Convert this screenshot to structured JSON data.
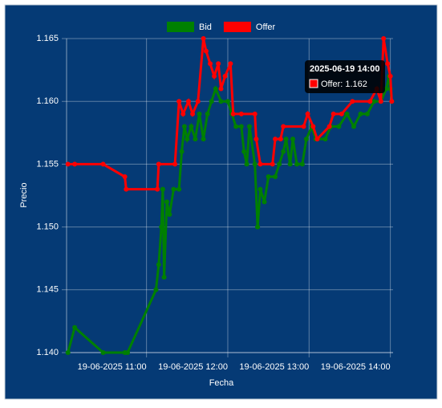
{
  "chart_data": {
    "type": "line",
    "x_label": "Fecha",
    "y_label": "Precio",
    "xlim": [
      "2025-06-19 10:01",
      "2025-06-19 14:02"
    ],
    "xticks": [
      {
        "value": "2025-06-19 11:00",
        "label": "19-06-2025 11:00"
      },
      {
        "value": "2025-06-19 12:00",
        "label": "19-06-2025 12:00"
      },
      {
        "value": "2025-06-19 13:00",
        "label": "19-06-2025 13:00"
      },
      {
        "value": "2025-06-19 14:00",
        "label": "19-06-2025 14:00"
      }
    ],
    "ylim": [
      1.14,
      1.165
    ],
    "yticks": [
      {
        "value": 1.14,
        "label": "1.140"
      },
      {
        "value": 1.145,
        "label": "1.145"
      },
      {
        "value": 1.15,
        "label": "1.150"
      },
      {
        "value": 1.155,
        "label": "1.155"
      },
      {
        "value": 1.16,
        "label": "1.160"
      },
      {
        "value": 1.165,
        "label": "1.165"
      }
    ],
    "grid": true,
    "legend": "top",
    "series": [
      {
        "name": "Bid",
        "color": "#008000",
        "x": [
          "2025-06-19 10:02",
          "2025-06-19 10:07",
          "2025-06-19 10:28",
          "2025-06-19 10:44",
          "2025-06-19 10:46",
          "2025-06-19 11:07",
          "2025-06-19 11:09",
          "2025-06-19 11:11",
          "2025-06-19 11:12",
          "2025-06-19 11:13",
          "2025-06-19 11:15",
          "2025-06-19 11:17",
          "2025-06-19 11:20",
          "2025-06-19 11:24",
          "2025-06-19 11:26",
          "2025-06-19 11:28",
          "2025-06-19 11:30",
          "2025-06-19 11:33",
          "2025-06-19 11:36",
          "2025-06-19 11:39",
          "2025-06-19 11:42",
          "2025-06-19 11:45",
          "2025-06-19 11:48",
          "2025-06-19 11:51",
          "2025-06-19 11:55",
          "2025-06-19 12:00",
          "2025-06-19 12:03",
          "2025-06-19 12:06",
          "2025-06-19 12:10",
          "2025-06-19 12:12",
          "2025-06-19 12:14",
          "2025-06-19 12:16",
          "2025-06-19 12:20",
          "2025-06-19 12:22",
          "2025-06-19 12:24",
          "2025-06-19 12:27",
          "2025-06-19 12:30",
          "2025-06-19 12:35",
          "2025-06-19 12:38",
          "2025-06-19 12:41",
          "2025-06-19 12:43",
          "2025-06-19 12:46",
          "2025-06-19 12:48",
          "2025-06-19 12:51",
          "2025-06-19 12:55",
          "2025-06-19 12:58",
          "2025-06-19 13:02",
          "2025-06-19 13:05",
          "2025-06-19 13:12",
          "2025-06-19 13:16",
          "2025-06-19 13:22",
          "2025-06-19 13:28",
          "2025-06-19 13:33",
          "2025-06-19 13:38",
          "2025-06-19 13:43",
          "2025-06-19 13:48",
          "2025-06-19 13:53",
          "2025-06-19 13:57",
          "2025-06-19 13:59",
          "2025-06-19 14:00",
          "2025-06-19 14:01"
        ],
        "values": [
          1.14,
          1.142,
          1.14,
          1.14,
          1.14,
          1.145,
          1.147,
          1.15,
          1.153,
          1.146,
          1.152,
          1.151,
          1.153,
          1.153,
          1.156,
          1.158,
          1.157,
          1.158,
          1.157,
          1.159,
          1.157,
          1.159,
          1.16,
          1.161,
          1.16,
          1.16,
          1.159,
          1.158,
          1.158,
          1.156,
          1.155,
          1.158,
          1.155,
          1.15,
          1.153,
          1.152,
          1.154,
          1.154,
          1.155,
          1.156,
          1.157,
          1.155,
          1.157,
          1.155,
          1.155,
          1.157,
          1.158,
          1.157,
          1.157,
          1.158,
          1.158,
          1.159,
          1.158,
          1.159,
          1.159,
          1.16,
          1.16,
          1.161,
          1.162,
          1.161,
          1.16
        ]
      },
      {
        "name": "Offer",
        "color": "#ff0000",
        "x": [
          "2025-06-19 10:02",
          "2025-06-19 10:07",
          "2025-06-19 10:28",
          "2025-06-19 10:44",
          "2025-06-19 10:45",
          "2025-06-19 11:08",
          "2025-06-19 11:09",
          "2025-06-19 11:21",
          "2025-06-19 11:24",
          "2025-06-19 11:27",
          "2025-06-19 11:31",
          "2025-06-19 11:34",
          "2025-06-19 11:38",
          "2025-06-19 11:42",
          "2025-06-19 11:44",
          "2025-06-19 11:47",
          "2025-06-19 11:50",
          "2025-06-19 11:53",
          "2025-06-19 11:55",
          "2025-06-19 11:58",
          "2025-06-19 12:02",
          "2025-06-19 12:04",
          "2025-06-19 12:10",
          "2025-06-19 12:20",
          "2025-06-19 12:21",
          "2025-06-19 12:24",
          "2025-06-19 12:33",
          "2025-06-19 12:35",
          "2025-06-19 12:39",
          "2025-06-19 12:41",
          "2025-06-19 12:56",
          "2025-06-19 12:59",
          "2025-06-19 13:03",
          "2025-06-19 13:06",
          "2025-06-19 13:15",
          "2025-06-19 13:18",
          "2025-06-19 13:24",
          "2025-06-19 13:32",
          "2025-06-19 13:45",
          "2025-06-19 13:50",
          "2025-06-19 13:53",
          "2025-06-19 13:55",
          "2025-06-19 13:58",
          "2025-06-19 14:00",
          "2025-06-19 14:01"
        ],
        "values": [
          1.155,
          1.155,
          1.155,
          1.154,
          1.153,
          1.153,
          1.155,
          1.155,
          1.16,
          1.159,
          1.16,
          1.159,
          1.16,
          1.165,
          1.164,
          1.163,
          1.162,
          1.163,
          1.161,
          1.162,
          1.163,
          1.159,
          1.159,
          1.159,
          1.157,
          1.155,
          1.155,
          1.157,
          1.157,
          1.158,
          1.158,
          1.159,
          1.158,
          1.157,
          1.158,
          1.159,
          1.159,
          1.16,
          1.16,
          1.161,
          1.16,
          1.165,
          1.163,
          1.162,
          1.16
        ]
      }
    ],
    "tooltip": {
      "title": "2025-06-19 14:00",
      "label": "Offer: 1.162"
    }
  }
}
